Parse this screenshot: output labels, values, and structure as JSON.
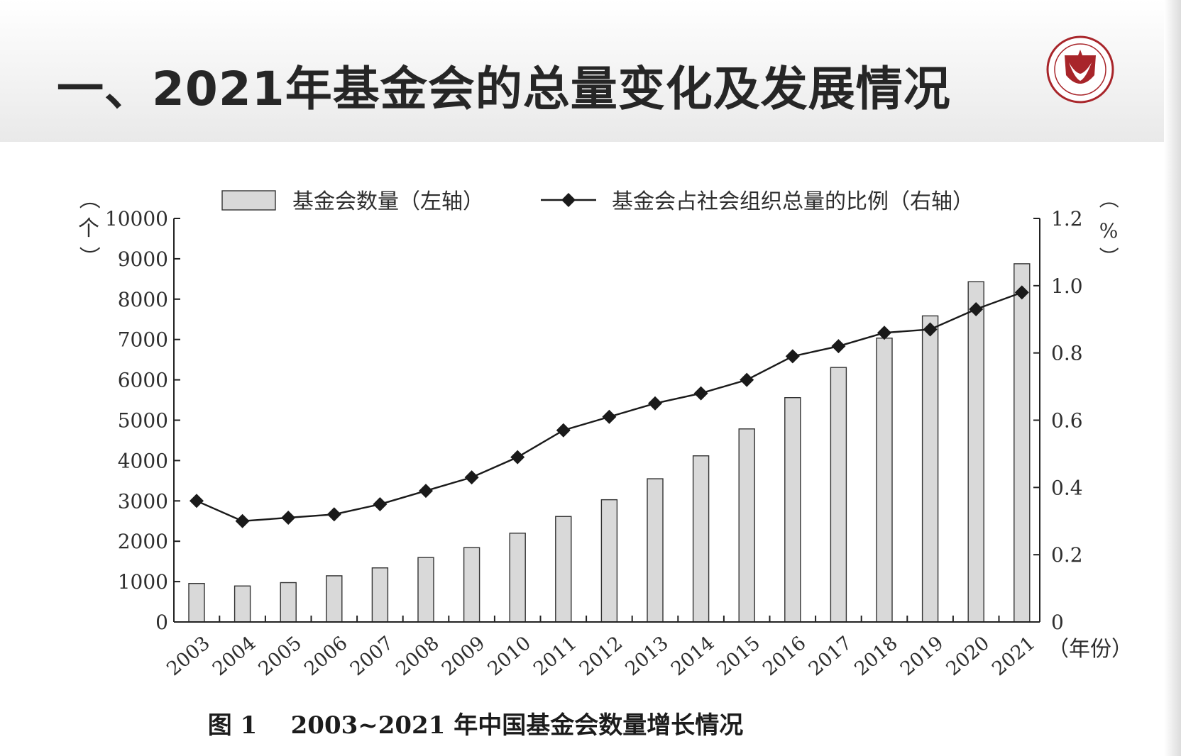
{
  "slide": {
    "title": "一、2021年基金会的总量变化及发展情况",
    "caption_fig": "图 1",
    "caption_text": "2003~2021 年中国基金会数量增长情况"
  },
  "colors": {
    "bar_fill": "#d9d9d9",
    "bar_stroke": "#333333",
    "line": "#1a1a1a",
    "logo_red": "#a8252a"
  },
  "icons": {
    "logo": "university-emblem-shield"
  },
  "chart_data": {
    "type": "bar+line",
    "categories": [
      "2003",
      "2004",
      "2005",
      "2006",
      "2007",
      "2008",
      "2009",
      "2010",
      "2011",
      "2012",
      "2013",
      "2014",
      "2015",
      "2016",
      "2017",
      "2018",
      "2019",
      "2020",
      "2021"
    ],
    "series": [
      {
        "name": "基金会数量（左轴）",
        "type": "bar",
        "axis": "left",
        "values": [
          954,
          892,
          975,
          1144,
          1340,
          1597,
          1843,
          2200,
          2614,
          3029,
          3549,
          4117,
          4784,
          5559,
          6307,
          7034,
          7585,
          8432,
          8877
        ]
      },
      {
        "name": "基金会占社会组织总量的比例（右轴）",
        "type": "line",
        "axis": "right",
        "marker": "diamond",
        "values": [
          0.36,
          0.3,
          0.31,
          0.32,
          0.35,
          0.39,
          0.43,
          0.49,
          0.57,
          0.61,
          0.65,
          0.68,
          0.72,
          0.79,
          0.82,
          0.86,
          0.87,
          0.93,
          0.98
        ]
      }
    ],
    "y_left": {
      "unit": "个",
      "min": 0,
      "max": 10000,
      "ticks": [
        "0",
        "1000",
        "2000",
        "3000",
        "4000",
        "5000",
        "6000",
        "7000",
        "8000",
        "9000",
        "10000"
      ]
    },
    "y_right": {
      "unit": "%",
      "min": 0,
      "max": 1.2,
      "ticks": [
        "0",
        "0.2",
        "0.4",
        "0.6",
        "0.8",
        "1.0",
        "1.2"
      ]
    },
    "x_unit": "年份",
    "legend_position": "top"
  }
}
